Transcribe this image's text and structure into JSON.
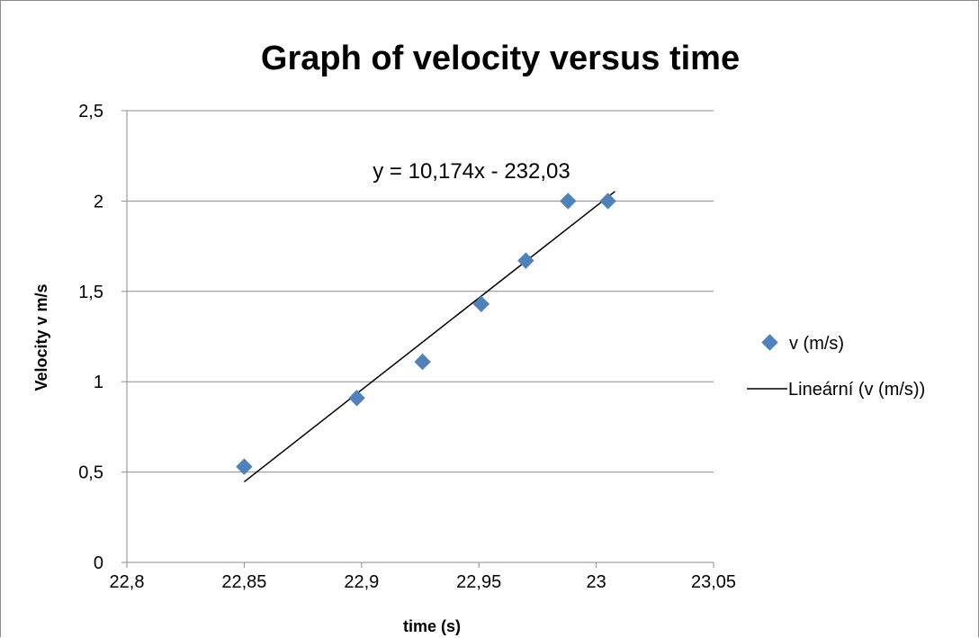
{
  "chart_data": {
    "type": "scatter",
    "title": "Graph of velocity versus time",
    "xlabel": "time (s)",
    "ylabel": "Velocity v m/s",
    "xlim": [
      22.8,
      23.05
    ],
    "ylim": [
      0,
      2.5
    ],
    "x_ticks": [
      22.8,
      22.85,
      22.9,
      22.95,
      23,
      23.05
    ],
    "x_tick_labels": [
      "22,8",
      "22,85",
      "22,9",
      "22,95",
      "23",
      "23,05"
    ],
    "y_ticks": [
      0,
      0.5,
      1,
      1.5,
      2,
      2.5
    ],
    "y_tick_labels": [
      "0",
      "0,5",
      "1",
      "1,5",
      "2",
      "2,5"
    ],
    "grid": "horizontal",
    "legend_placement": "right",
    "series": [
      {
        "name": "v (m/s)",
        "marker": "diamond",
        "color": "#4f81bd",
        "x": [
          22.85,
          22.898,
          22.926,
          22.951,
          22.97,
          22.988,
          23.005
        ],
        "y": [
          0.53,
          0.91,
          1.11,
          1.43,
          1.67,
          2.0,
          2.0
        ]
      }
    ],
    "trendline": {
      "name": "Lineární (v (m/s))",
      "color": "#000000",
      "slope": 10.174,
      "intercept": -232.03,
      "x_range": [
        22.85,
        23.008
      ],
      "equation_label": "y = 10,174x - 232,03"
    }
  }
}
